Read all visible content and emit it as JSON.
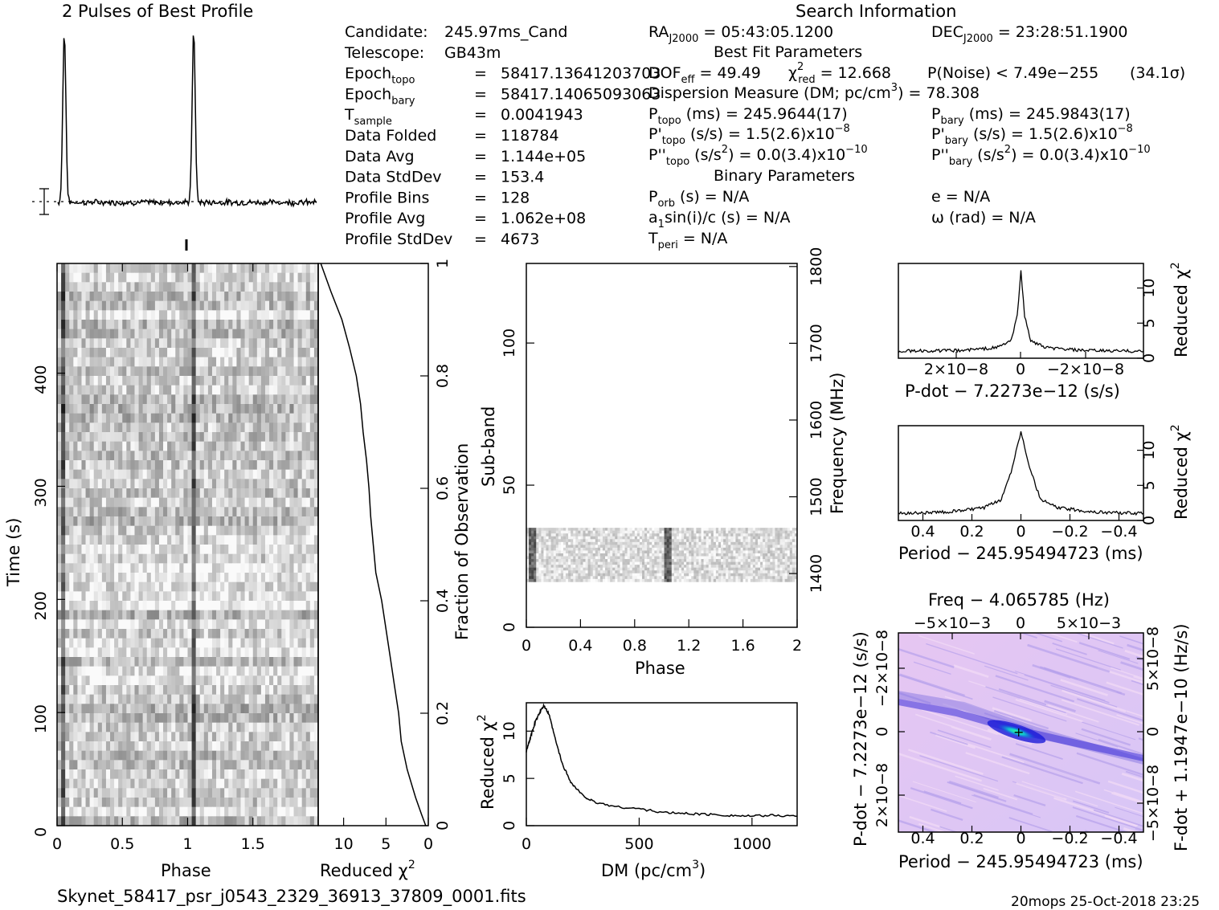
{
  "title_profile": "2 Pulses of Best Profile",
  "title_search": "Search Information",
  "filename": "Skynet_58417_psr_j0543_2329_36913_37809_0001.fits",
  "footer_right": "20mops 25-Oct-2018 23:25",
  "info_left": [
    {
      "key": "Candidate:",
      "sub": "",
      "eq": "",
      "val": "245.97ms_Cand"
    },
    {
      "key": "Telescope:",
      "sub": "",
      "eq": "",
      "val": "GB43m"
    },
    {
      "key": "Epoch",
      "sub": "topo",
      "eq": "=",
      "val": "58417.13641203703"
    },
    {
      "key": "Epoch",
      "sub": "bary",
      "eq": "=",
      "val": "58417.14065093063"
    },
    {
      "key": "T",
      "sub": "sample",
      "eq": "=",
      "val": "0.0041943"
    },
    {
      "key": "Data Folded",
      "sub": "",
      "eq": "=",
      "val": "118784"
    },
    {
      "key": "Data Avg",
      "sub": "",
      "eq": "=",
      "val": "1.144e+05"
    },
    {
      "key": "Data StdDev",
      "sub": "",
      "eq": "=",
      "val": "153.4"
    },
    {
      "key": "Profile Bins",
      "sub": "",
      "eq": "=",
      "val": "128"
    },
    {
      "key": "Profile Avg",
      "sub": "",
      "eq": "=",
      "val": "1.062e+08"
    },
    {
      "key": "Profile StdDev",
      "sub": "",
      "eq": "=",
      "val": "4673"
    }
  ],
  "search_info": {
    "ra_label": "RA",
    "ra_sub": "J2000",
    "ra_value": "= 05:43:05.1200",
    "dec_label": "DEC",
    "dec_sub": "J2000",
    "dec_value": "= 23:28:51.1900",
    "best_fit_header": "Best Fit Parameters",
    "dof_label": "DOF",
    "dof_sub": "eff",
    "dof_value": "= 49.49",
    "chi_label": "χ",
    "chi_sup": "2",
    "chi_sub": "red",
    "chi_value": "= 12.668",
    "pnoise": "P(Noise) < 7.49e−255",
    "sigma": "(34.1σ)",
    "dm_text": "Dispersion Measure (DM; pc/cm",
    "dm_sup": "3",
    "dm_value": ") = 78.308",
    "ptopo_label": "P",
    "ptopo_sub": "topo",
    "ptopo_value": "(ms) =  245.9644(17)",
    "pbary_label": "P",
    "pbary_sub": "bary",
    "pbary_value": "(ms) =  245.9843(17)",
    "pdtopo_label": "P'",
    "pdtopo_sub": "topo",
    "pdtopo_value": "(s/s) =  1.5(2.6)x10",
    "pdtopo_exp": "−8",
    "pdbary_label": "P'",
    "pdbary_sub": "bary",
    "pdbary_value": "(s/s) =  1.5(2.6)x10",
    "pdbary_exp": "−8",
    "pddtopo_label": "P''",
    "pddtopo_sub": "topo",
    "pddtopo_value": "(s/s",
    "pddtopo_sup": "2",
    "pddtopo_tail": ") = 0.0(3.4)x10",
    "pddtopo_exp": "−10",
    "pddbary_label": "P''",
    "pddbary_sub": "bary",
    "pddbary_value": "(s/s",
    "pddbary_sup": "2",
    "pddbary_tail": ") = 0.0(3.4)x10",
    "pddbary_exp": "−10",
    "binary_header": "Binary Parameters",
    "porb_label": "P",
    "porb_sub": "orb",
    "porb_value": "(s) = N/A",
    "e_value": "e = N/A",
    "a1_label": "a",
    "a1_sub": "1",
    "a1_value": "sin(i)/c (s) = N/A",
    "omega_value": "ω (rad) = N/A",
    "tperi_label": "T",
    "tperi_sub": "peri",
    "tperi_value": "= N/A"
  },
  "chart_data": [
    {
      "type": "line",
      "title": "2 Pulses of Best Profile",
      "xlabel": "",
      "ylabel": "",
      "phase_range": [
        0,
        2
      ],
      "pulse_phases": [
        0.05,
        1.05
      ],
      "description_values": {
        "peak": 1.0,
        "baseline": 0.0
      }
    },
    {
      "type": "heatmap",
      "name": "time-vs-phase",
      "xlabel": "Phase",
      "ylabel": "Time (s)",
      "xlim": [
        0,
        2
      ],
      "ylim": [
        0,
        497
      ],
      "xticks": [
        "0",
        "0.5",
        "1",
        "1.5"
      ],
      "yticks": [
        "0",
        "100",
        "200",
        "300",
        "400"
      ],
      "pulse_phases": [
        0.05,
        1.05
      ]
    },
    {
      "type": "line",
      "name": "reduced-chi2-vs-fraction",
      "xlabel": "Reduced χ2",
      "ylabel": "Fraction of Observation",
      "xlim": [
        13,
        0
      ],
      "ylim": [
        0,
        1
      ],
      "xticks": [
        "10",
        "5",
        "0"
      ],
      "yticks": [
        "0",
        "0.2",
        "0.4",
        "0.6",
        "0.8",
        "1"
      ],
      "fraction": [
        0,
        0.02,
        0.05,
        0.1,
        0.15,
        0.2,
        0.25,
        0.3,
        0.35,
        0.4,
        0.45,
        0.5,
        0.55,
        0.6,
        0.65,
        0.7,
        0.75,
        0.8,
        0.85,
        0.9,
        0.95,
        1.0
      ],
      "reduced_chi2": [
        0.3,
        0.8,
        1.5,
        2.5,
        3.2,
        3.5,
        4.0,
        4.5,
        5.0,
        5.5,
        6.2,
        6.5,
        6.8,
        7.0,
        7.3,
        7.7,
        8.0,
        8.5,
        9.3,
        10.2,
        11.5,
        12.7
      ]
    },
    {
      "type": "heatmap",
      "name": "subband-vs-phase",
      "xlabel": "Phase",
      "ylabel": "Sub-band",
      "y2label": "Frequency (MHz)",
      "xlim": [
        0,
        2
      ],
      "ylim": [
        0,
        128
      ],
      "xticks": [
        "0",
        "0.4",
        "0.8",
        "1.2",
        "1.6",
        "2"
      ],
      "yticks": [
        "0",
        "50",
        "100"
      ],
      "y2ticks": [
        "1400",
        "1500",
        "1600",
        "1700",
        "1800"
      ],
      "band_subbands": [
        16,
        35
      ],
      "pulse_phases": [
        0.05,
        1.05
      ]
    },
    {
      "type": "line",
      "name": "dm-vs-chi2",
      "xlabel": "DM (pc/cm3)",
      "ylabel": "Reduced χ2",
      "xlim": [
        0,
        1200
      ],
      "ylim": [
        0,
        13
      ],
      "xticks": [
        "0",
        "500",
        "1000"
      ],
      "yticks": [
        "0",
        "5",
        "10"
      ],
      "x": [
        0,
        20,
        40,
        60,
        78,
        100,
        130,
        160,
        200,
        250,
        300,
        400,
        500,
        600,
        700,
        800,
        900,
        1000,
        1100,
        1200
      ],
      "y": [
        7.8,
        9.5,
        11.0,
        12.0,
        12.7,
        11.8,
        9.0,
        6.5,
        4.5,
        3.2,
        2.5,
        2.0,
        1.8,
        1.4,
        1.3,
        1.2,
        1.1,
        1.0,
        1.1,
        1.0
      ]
    },
    {
      "type": "line",
      "name": "pdot-vs-chi2",
      "xlabel": "P-dot − 7.2273e−12 (s/s)",
      "ylabel": "Reduced χ2",
      "xticks": [
        "2×10−8",
        "0",
        "−2×10−8"
      ],
      "yticks": [
        "0",
        "5",
        "10"
      ],
      "ylim": [
        0,
        13.5
      ],
      "x": [
        -1,
        -0.5,
        -0.2,
        -0.08,
        -0.03,
        0,
        0.03,
        0.08,
        0.2,
        0.5,
        1
      ],
      "y": [
        1.0,
        1.1,
        1.5,
        2.5,
        6.0,
        12.7,
        6.0,
        2.5,
        1.5,
        1.1,
        1.0
      ]
    },
    {
      "type": "line",
      "name": "period-vs-chi2",
      "xlabel": "Period − 245.95494723 (ms)",
      "ylabel": "Reduced χ2",
      "xlim": [
        0.5,
        -0.5
      ],
      "xticks": [
        "0.4",
        "0.2",
        "0",
        "−0.2",
        "−0.4"
      ],
      "yticks": [
        "0",
        "5",
        "10"
      ],
      "ylim": [
        0,
        13.5
      ],
      "x": [
        0.5,
        0.3,
        0.15,
        0.08,
        0.04,
        0.0,
        -0.04,
        -0.08,
        -0.15,
        -0.3,
        -0.5
      ],
      "y": [
        1.0,
        1.2,
        1.8,
        3.0,
        7.0,
        12.7,
        7.0,
        3.0,
        1.8,
        1.2,
        1.0
      ]
    },
    {
      "type": "heatmap",
      "name": "period-pdot-plane",
      "title": "Freq − 4.065785 (Hz)",
      "xlabel": "Period − 245.95494723 (ms)",
      "ylabel": "P-dot − 7.2273e−12 (s/s)",
      "y2label": "F-dot + 1.1947e−10 (Hz/s)",
      "xticks": [
        "0.4",
        "0.2",
        "0",
        "−0.2",
        "−0.4"
      ],
      "x2ticks": [
        "−5×10−3",
        "0",
        "5×10−3"
      ],
      "yticks": [
        "2×10−8",
        "0",
        "−2×10−8"
      ],
      "y2ticks": [
        "−5×10−8",
        "0",
        "5×10−8"
      ]
    }
  ]
}
